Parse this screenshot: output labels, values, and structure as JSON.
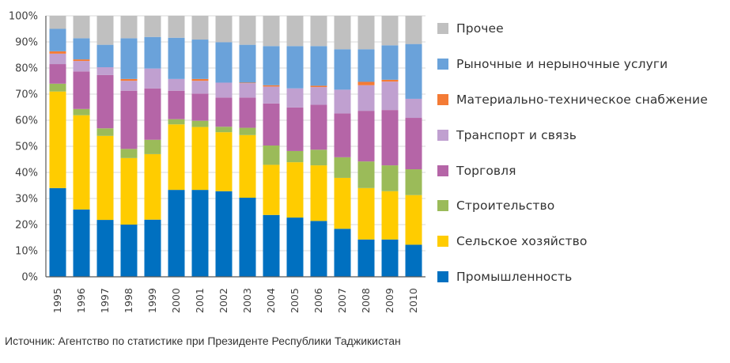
{
  "chart_data": {
    "type": "bar",
    "stacked": true,
    "normalized": true,
    "title": "",
    "xlabel": "",
    "ylabel": "",
    "ylim": [
      0,
      100
    ],
    "y_ticks": [
      "0%",
      "10%",
      "20%",
      "30%",
      "40%",
      "50%",
      "60%",
      "70%",
      "80%",
      "90%",
      "100%"
    ],
    "grid": true,
    "legend_position": "right",
    "categories": [
      "1995",
      "1996",
      "1997",
      "1998",
      "1999",
      "2000",
      "2001",
      "2002",
      "2003",
      "2004",
      "2005",
      "2006",
      "2007",
      "2008",
      "2009",
      "2010"
    ],
    "series": [
      {
        "name": "Промышленность",
        "color": "#0070C0",
        "values": [
          34.0,
          25.8,
          21.8,
          20.0,
          21.9,
          33.3,
          33.3,
          32.8,
          30.3,
          23.7,
          22.7,
          21.4,
          18.4,
          14.3,
          14.3,
          12.3
        ]
      },
      {
        "name": "Сельское хозяйство",
        "color": "#FFCC00",
        "values": [
          37.0,
          36.1,
          32.2,
          25.5,
          25.1,
          25.1,
          24.1,
          22.6,
          24.0,
          19.2,
          21.2,
          21.3,
          19.5,
          19.7,
          18.5,
          19.0
        ]
      },
      {
        "name": "Строительство",
        "color": "#9BBB59",
        "values": [
          3.0,
          2.4,
          2.9,
          3.5,
          5.5,
          2.0,
          2.4,
          2.1,
          2.8,
          7.4,
          4.3,
          6.0,
          7.9,
          10.2,
          9.9,
          9.9
        ]
      },
      {
        "name": "Торговля",
        "color": "#B565A7",
        "values": [
          7.5,
          14.4,
          20.4,
          22.3,
          19.7,
          10.9,
          10.4,
          11.2,
          11.6,
          16.1,
          16.7,
          17.2,
          16.8,
          19.4,
          21.2,
          19.7
        ]
      },
      {
        "name": "Транспорт и связь",
        "color": "#C0A0D0",
        "values": [
          4.0,
          4.0,
          3.0,
          3.8,
          7.6,
          4.5,
          4.9,
          5.7,
          5.5,
          6.5,
          7.3,
          6.8,
          9.1,
          9.8,
          10.9,
          7.3
        ]
      },
      {
        "name": "Материально-техническое снабжение",
        "color": "#F47B35",
        "values": [
          0.9,
          0.6,
          0.0,
          0.7,
          0.0,
          0.0,
          0.7,
          0.0,
          0.2,
          0.5,
          0.0,
          0.5,
          0.0,
          1.3,
          0.7,
          0.0
        ]
      },
      {
        "name": "Рыночные и нерыночные услуги",
        "color": "#6AA2DA",
        "values": [
          8.6,
          8.1,
          8.6,
          15.6,
          12.1,
          15.8,
          15.1,
          15.5,
          14.5,
          15.0,
          16.2,
          15.2,
          15.5,
          12.5,
          13.2,
          21.0
        ]
      },
      {
        "name": "Прочее",
        "color": "#C0C0C0",
        "values": [
          5.0,
          8.6,
          11.1,
          8.6,
          8.1,
          8.4,
          9.1,
          10.1,
          11.1,
          11.6,
          11.6,
          11.6,
          12.8,
          12.8,
          11.3,
          10.8
        ]
      }
    ],
    "legend_order": [
      "Прочее",
      "Рыночные и нерыночные услуги",
      "Материально-техническое снабжение",
      "Транспорт и связь",
      "Торговля",
      "Строительство",
      "Сельское хозяйство",
      "Промышленность"
    ],
    "source": "Источник: Агентство по статистике при Президенте Республики Таджикистан"
  }
}
